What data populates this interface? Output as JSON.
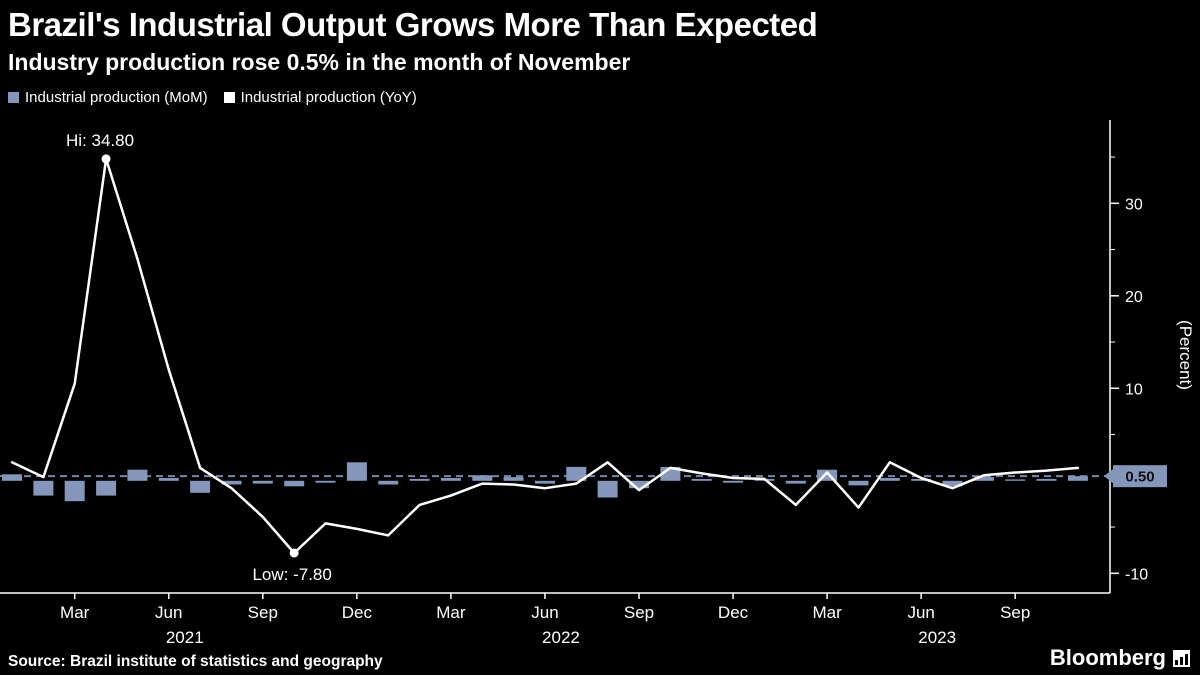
{
  "header": {
    "title": "Brazil's Industrial Output Grows More Than Expected",
    "subtitle": "Industry production rose 0.5% in the month of November"
  },
  "legend": {
    "items": [
      {
        "label": "Industrial production (MoM)",
        "color": "#8497BB",
        "type": "bar"
      },
      {
        "label": "Industrial production (YoY)",
        "color": "#FFFFFF",
        "type": "line"
      }
    ]
  },
  "chart_data": {
    "type": "combo",
    "background": "#000000",
    "grid": false,
    "categories": [
      "Jan 2021",
      "Feb 2021",
      "Mar 2021",
      "Apr 2021",
      "May 2021",
      "Jun 2021",
      "Jul 2021",
      "Aug 2021",
      "Sep 2021",
      "Oct 2021",
      "Nov 2021",
      "Dec 2021",
      "Jan 2022",
      "Feb 2022",
      "Mar 2022",
      "Apr 2022",
      "May 2022",
      "Jun 2022",
      "Jul 2022",
      "Aug 2022",
      "Sep 2022",
      "Oct 2022",
      "Nov 2022",
      "Dec 2022",
      "Jan 2023",
      "Feb 2023",
      "Mar 2023",
      "Apr 2023",
      "May 2023",
      "Jun 2023",
      "Jul 2023",
      "Aug 2023",
      "Sep 2023",
      "Oct 2023",
      "Nov 2023"
    ],
    "series": [
      {
        "name": "Industrial production (MoM)",
        "type": "bar",
        "color": "#8497BB",
        "values": [
          0.7,
          -1.6,
          -2.2,
          -1.6,
          1.2,
          0.3,
          -1.3,
          -0.4,
          -0.3,
          -0.6,
          -0.2,
          2.0,
          -0.4,
          0.2,
          0.3,
          0.6,
          0.4,
          -0.3,
          1.5,
          -1.8,
          -0.8,
          1.5,
          0.2,
          -0.2,
          0.2,
          -0.3,
          1.2,
          -0.5,
          0.3,
          0.2,
          -0.6,
          0.4,
          0.1,
          0.2,
          0.5
        ]
      },
      {
        "name": "Industrial production (YoY)",
        "type": "line",
        "color": "#FFFFFF",
        "values": [
          2.0,
          0.4,
          10.5,
          34.8,
          24.0,
          12.0,
          1.4,
          -0.8,
          -3.9,
          -7.8,
          -4.6,
          -5.2,
          -5.9,
          -2.6,
          -1.6,
          -0.3,
          -0.4,
          -0.8,
          -0.3,
          2.0,
          -1.0,
          1.4,
          0.8,
          0.3,
          0.2,
          -2.6,
          0.9,
          -2.9,
          2.0,
          0.3,
          -0.8,
          0.6,
          0.9,
          1.1,
          1.4
        ]
      }
    ],
    "annotations": {
      "high": {
        "label": "Hi: 34.80",
        "series": "Industrial production (YoY)",
        "category": "Apr 2021",
        "value": 34.8
      },
      "low": {
        "label": "Low: -7.80",
        "series": "Industrial production (YoY)",
        "category": "Oct 2021",
        "value": -7.8
      },
      "last_value_badge": {
        "label": "0.50",
        "series": "Industrial production (MoM)",
        "value": 0.5
      }
    },
    "reference_line": {
      "value": 0.5,
      "style": "dashed",
      "color": "#8497BB"
    },
    "y_axis": {
      "label": "(Percent)",
      "side": "right",
      "ticks": [
        30,
        20,
        10,
        -10
      ],
      "minor_ticks": [
        35,
        25,
        15,
        5,
        -5
      ],
      "ylim": [
        -12,
        39
      ]
    },
    "x_axis": {
      "ticks": [
        {
          "label": "Mar",
          "index": 2
        },
        {
          "label": "Jun",
          "index": 5
        },
        {
          "label": "Sep",
          "index": 8
        },
        {
          "label": "Dec",
          "index": 11
        },
        {
          "label": "Mar",
          "index": 14
        },
        {
          "label": "Jun",
          "index": 17
        },
        {
          "label": "Sep",
          "index": 20
        },
        {
          "label": "Dec",
          "index": 23
        },
        {
          "label": "Mar",
          "index": 26
        },
        {
          "label": "Jun",
          "index": 29
        },
        {
          "label": "Sep",
          "index": 32
        }
      ],
      "year_labels": [
        {
          "label": "2021",
          "index": 5
        },
        {
          "label": "2022",
          "index": 17
        },
        {
          "label": "2023",
          "index": 29
        }
      ]
    }
  },
  "footer": {
    "source": "Source: Brazil institute of statistics and geography",
    "brand": "Bloomberg"
  }
}
